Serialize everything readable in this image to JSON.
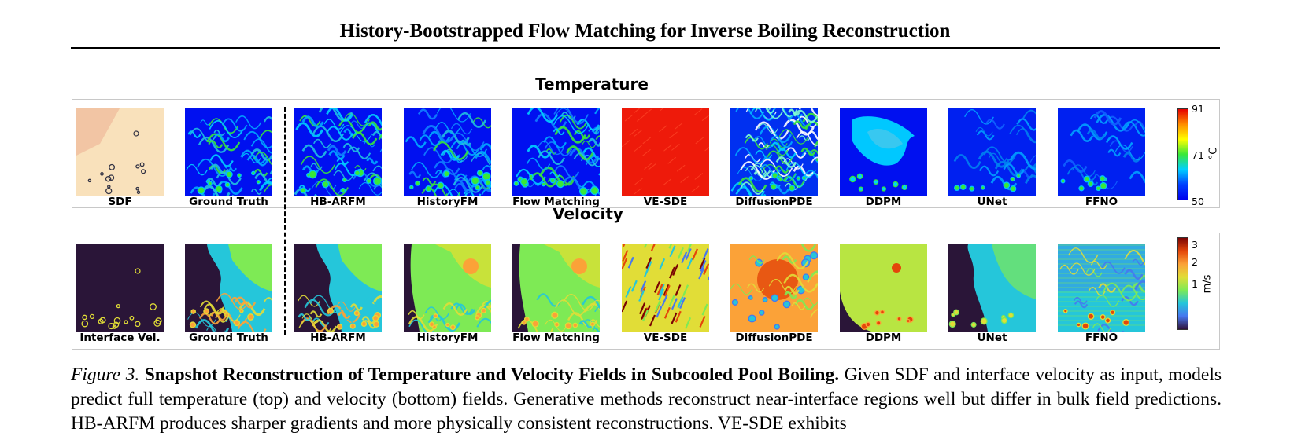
{
  "header": {
    "running_title": "History-Bootstrapped Flow Matching for Inverse Boiling Reconstruction"
  },
  "figure": {
    "temperature": {
      "title": "Temperature",
      "panels": [
        {
          "label": "SDF",
          "field": "sdf"
        },
        {
          "label": "Ground Truth",
          "field": "temp-truth"
        },
        {
          "label": "HB-ARFM",
          "field": "temp-good"
        },
        {
          "label": "HistoryFM",
          "field": "temp-good"
        },
        {
          "label": "Flow Matching",
          "field": "temp-good"
        },
        {
          "label": "VE-SDE",
          "field": "temp-red"
        },
        {
          "label": "DiffusionPDE",
          "field": "temp-diff"
        },
        {
          "label": "DDPM",
          "field": "temp-ddpm"
        },
        {
          "label": "UNet",
          "field": "temp-blurry"
        },
        {
          "label": "FFNO",
          "field": "temp-blurry"
        }
      ],
      "colorbar": {
        "ticks": [
          "91",
          "71",
          "50"
        ],
        "unit": "°C",
        "colors": [
          "#e60000",
          "#ff8c00",
          "#ffff00",
          "#38e838",
          "#00d0ff",
          "#0040ff",
          "#0000ee"
        ]
      }
    },
    "velocity": {
      "title": "Velocity",
      "panels": [
        {
          "label": "Interface Vel.",
          "field": "vel-interface"
        },
        {
          "label": "Ground Truth",
          "field": "vel-truth"
        },
        {
          "label": "HB-ARFM",
          "field": "vel-truth"
        },
        {
          "label": "HistoryFM",
          "field": "vel-smooth"
        },
        {
          "label": "Flow Matching",
          "field": "vel-smooth"
        },
        {
          "label": "VE-SDE",
          "field": "vel-noise"
        },
        {
          "label": "DiffusionPDE",
          "field": "vel-diff"
        },
        {
          "label": "DDPM",
          "field": "vel-ddpm"
        },
        {
          "label": "UNet",
          "field": "vel-unet"
        },
        {
          "label": "FFNO",
          "field": "vel-ffno"
        }
      ],
      "colorbar": {
        "ticks": [
          "3",
          "2",
          "1"
        ],
        "unit": "m/s",
        "colors": [
          "#7a0403",
          "#e4460a",
          "#fba238",
          "#e1dd37",
          "#7eea55",
          "#25c6da",
          "#4777ef",
          "#30123b"
        ]
      }
    }
  },
  "caption": {
    "figure_number": "Figure 3.",
    "heading": "Snapshot Reconstruction of Temperature and Velocity Fields in Subcooled Pool Boiling.",
    "body": "Given SDF and interface velocity as input, models predict full temperature (top) and velocity (bottom) fields. Generative methods reconstruct near-interface regions well but differ in bulk field predictions. HB-ARFM produces sharper gradients and more physically consistent reconstructions. VE-SDE exhibits"
  }
}
